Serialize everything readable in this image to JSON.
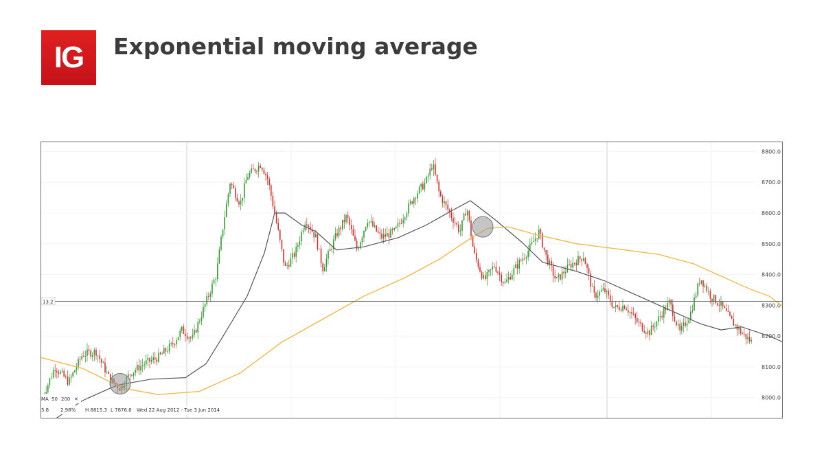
{
  "header": {
    "logo_text": "IG",
    "title": "Exponential moving average"
  },
  "colors": {
    "up": "#2f9e2f",
    "down": "#d9302c",
    "ema50": "#555555",
    "ema200": "#f3b53f",
    "brand": "#d71920"
  },
  "chart_data": {
    "type": "candlestick",
    "title": "Exponential moving average",
    "ylim": [
      7930,
      8830
    ],
    "yticks": [
      "8800.0",
      "8700.0",
      "8600.0",
      "8500.0",
      "8400.0",
      "8300.0",
      "8200.0",
      "8100.0",
      "8000.0"
    ],
    "crosshair_label": "13.2",
    "crosshair_value": 8313,
    "indicator": {
      "ma_label": "MA",
      "period_short": "50",
      "period_long": "200",
      "close_label": "✕",
      "value_left": "5.8",
      "change_pct": "2.98%",
      "high": "H 8815.3",
      "low": "L 7876.6",
      "range": "Wed 22 Aug 2012 - Tue 3 Jun 2014"
    },
    "series": [
      {
        "name": "50",
        "points": [
          [
            0,
            7900
          ],
          [
            60,
            7990
          ],
          [
            110,
            8040
          ],
          [
            160,
            8060
          ],
          [
            210,
            8065
          ],
          [
            240,
            8110
          ],
          [
            265,
            8200
          ],
          [
            300,
            8330
          ],
          [
            325,
            8470
          ],
          [
            340,
            8600
          ],
          [
            355,
            8600
          ],
          [
            380,
            8560
          ],
          [
            400,
            8540
          ],
          [
            430,
            8480
          ],
          [
            470,
            8490
          ],
          [
            520,
            8520
          ],
          [
            560,
            8560
          ],
          [
            600,
            8610
          ],
          [
            625,
            8640
          ],
          [
            660,
            8580
          ],
          [
            700,
            8505
          ],
          [
            730,
            8440
          ],
          [
            780,
            8410
          ],
          [
            820,
            8380
          ],
          [
            860,
            8340
          ],
          [
            920,
            8280
          ],
          [
            960,
            8240
          ],
          [
            990,
            8220
          ],
          [
            1020,
            8230
          ],
          [
            1060,
            8200
          ],
          [
            1081,
            8180
          ]
        ]
      },
      {
        "name": "200",
        "points": [
          [
            0,
            8130
          ],
          [
            60,
            8095
          ],
          [
            120,
            8030
          ],
          [
            170,
            8010
          ],
          [
            230,
            8020
          ],
          [
            290,
            8080
          ],
          [
            350,
            8180
          ],
          [
            410,
            8255
          ],
          [
            470,
            8330
          ],
          [
            530,
            8390
          ],
          [
            580,
            8450
          ],
          [
            620,
            8510
          ],
          [
            650,
            8550
          ],
          [
            680,
            8555
          ],
          [
            720,
            8530
          ],
          [
            780,
            8500
          ],
          [
            850,
            8480
          ],
          [
            900,
            8465
          ],
          [
            950,
            8435
          ],
          [
            990,
            8395
          ],
          [
            1030,
            8355
          ],
          [
            1060,
            8330
          ],
          [
            1081,
            8295
          ]
        ]
      }
    ],
    "price_path": [
      [
        0,
        7990
      ],
      [
        20,
        8100
      ],
      [
        40,
        8050
      ],
      [
        60,
        8140
      ],
      [
        80,
        8150
      ],
      [
        100,
        8060
      ],
      [
        115,
        8030
      ],
      [
        130,
        8080
      ],
      [
        150,
        8110
      ],
      [
        170,
        8130
      ],
      [
        190,
        8170
      ],
      [
        205,
        8220
      ],
      [
        220,
        8190
      ],
      [
        235,
        8280
      ],
      [
        255,
        8400
      ],
      [
        265,
        8560
      ],
      [
        275,
        8700
      ],
      [
        290,
        8630
      ],
      [
        300,
        8720
      ],
      [
        320,
        8760
      ],
      [
        330,
        8710
      ],
      [
        340,
        8600
      ],
      [
        355,
        8420
      ],
      [
        370,
        8470
      ],
      [
        385,
        8580
      ],
      [
        400,
        8520
      ],
      [
        410,
        8420
      ],
      [
        430,
        8530
      ],
      [
        445,
        8590
      ],
      [
        460,
        8480
      ],
      [
        475,
        8580
      ],
      [
        495,
        8520
      ],
      [
        515,
        8540
      ],
      [
        530,
        8600
      ],
      [
        545,
        8660
      ],
      [
        560,
        8700
      ],
      [
        570,
        8760
      ],
      [
        580,
        8660
      ],
      [
        595,
        8600
      ],
      [
        610,
        8540
      ],
      [
        620,
        8620
      ],
      [
        630,
        8470
      ],
      [
        645,
        8380
      ],
      [
        660,
        8430
      ],
      [
        675,
        8370
      ],
      [
        690,
        8420
      ],
      [
        710,
        8480
      ],
      [
        725,
        8540
      ],
      [
        735,
        8460
      ],
      [
        750,
        8380
      ],
      [
        770,
        8430
      ],
      [
        790,
        8460
      ],
      [
        805,
        8330
      ],
      [
        820,
        8350
      ],
      [
        835,
        8290
      ],
      [
        850,
        8300
      ],
      [
        870,
        8240
      ],
      [
        885,
        8210
      ],
      [
        900,
        8260
      ],
      [
        915,
        8310
      ],
      [
        930,
        8210
      ],
      [
        945,
        8270
      ],
      [
        960,
        8390
      ],
      [
        975,
        8330
      ],
      [
        990,
        8300
      ],
      [
        1005,
        8250
      ],
      [
        1020,
        8210
      ],
      [
        1040,
        8170
      ],
      [
        1060,
        8110
      ],
      [
        1081,
        8130
      ]
    ],
    "highlights": [
      {
        "x": 115,
        "y": 8045
      },
      {
        "x": 643,
        "y": 8555
      }
    ]
  }
}
